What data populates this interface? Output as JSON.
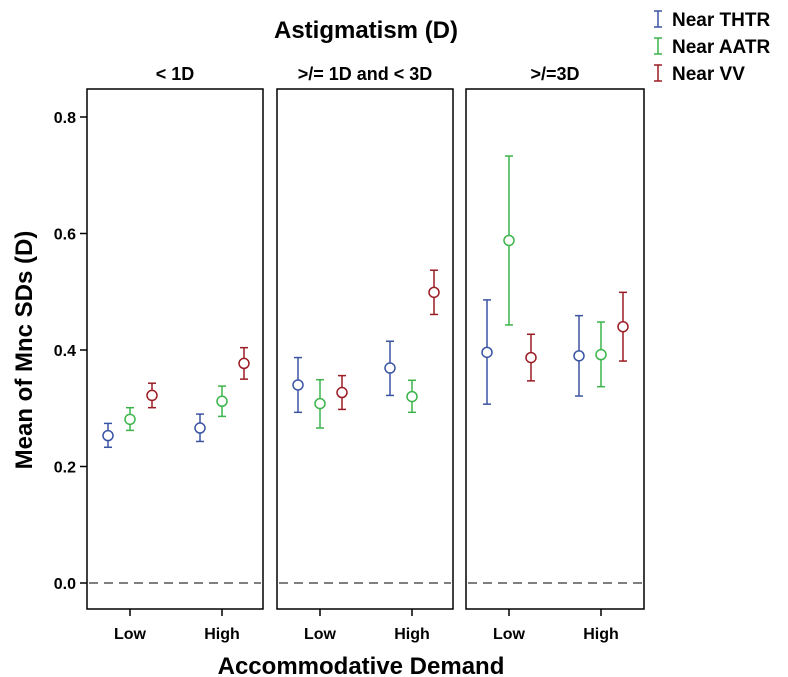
{
  "chart_data": {
    "type": "scatter",
    "subtype": "error-bar",
    "title": "Astigmatism (D)",
    "xlabel": "Accommodative Demand",
    "ylabel": "Mean of Mnc SDs (D)",
    "categories": [
      "Low",
      "High"
    ],
    "panels": [
      "< 1D",
      ">/= 1D and < 3D",
      ">/=3D"
    ],
    "ylim": [
      -0.05,
      0.84
    ],
    "yticks": [
      {
        "value": 0.0,
        "label": "0.0"
      },
      {
        "value": 0.2,
        "label": "0.2"
      },
      {
        "value": 0.4,
        "label": "0.4"
      },
      {
        "value": 0.6,
        "label": "0.6"
      },
      {
        "value": 0.8,
        "label": "0.8"
      }
    ],
    "reference_line": {
      "value": 0.0,
      "style": "dashed"
    },
    "grid": false,
    "legend_position": "top-right",
    "series": [
      {
        "name": "Near THTR",
        "color": "#3a54a4",
        "values": [
          [
            0.253,
            0.266
          ],
          [
            0.34,
            0.369
          ],
          [
            0.396,
            0.39
          ]
        ],
        "lower": [
          [
            0.233,
            0.243
          ],
          [
            0.293,
            0.322
          ],
          [
            0.307,
            0.321
          ]
        ],
        "upper": [
          [
            0.274,
            0.29
          ],
          [
            0.387,
            0.415
          ],
          [
            0.486,
            0.459
          ]
        ]
      },
      {
        "name": "Near AATR",
        "color": "#3cb44a",
        "values": [
          [
            0.281,
            0.312
          ],
          [
            0.308,
            0.32
          ],
          [
            0.588,
            0.392
          ]
        ],
        "lower": [
          [
            0.262,
            0.286
          ],
          [
            0.266,
            0.293
          ],
          [
            0.443,
            0.337
          ]
        ],
        "upper": [
          [
            0.301,
            0.338
          ],
          [
            0.349,
            0.348
          ],
          [
            0.733,
            0.448
          ]
        ]
      },
      {
        "name": "Near VV",
        "color": "#9b1c24",
        "values": [
          [
            0.322,
            0.377
          ],
          [
            0.327,
            0.499
          ],
          [
            0.387,
            0.44
          ]
        ],
        "lower": [
          [
            0.301,
            0.35
          ],
          [
            0.298,
            0.461
          ],
          [
            0.347,
            0.381
          ]
        ],
        "upper": [
          [
            0.343,
            0.404
          ],
          [
            0.356,
            0.537
          ],
          [
            0.427,
            0.499
          ]
        ]
      }
    ]
  }
}
